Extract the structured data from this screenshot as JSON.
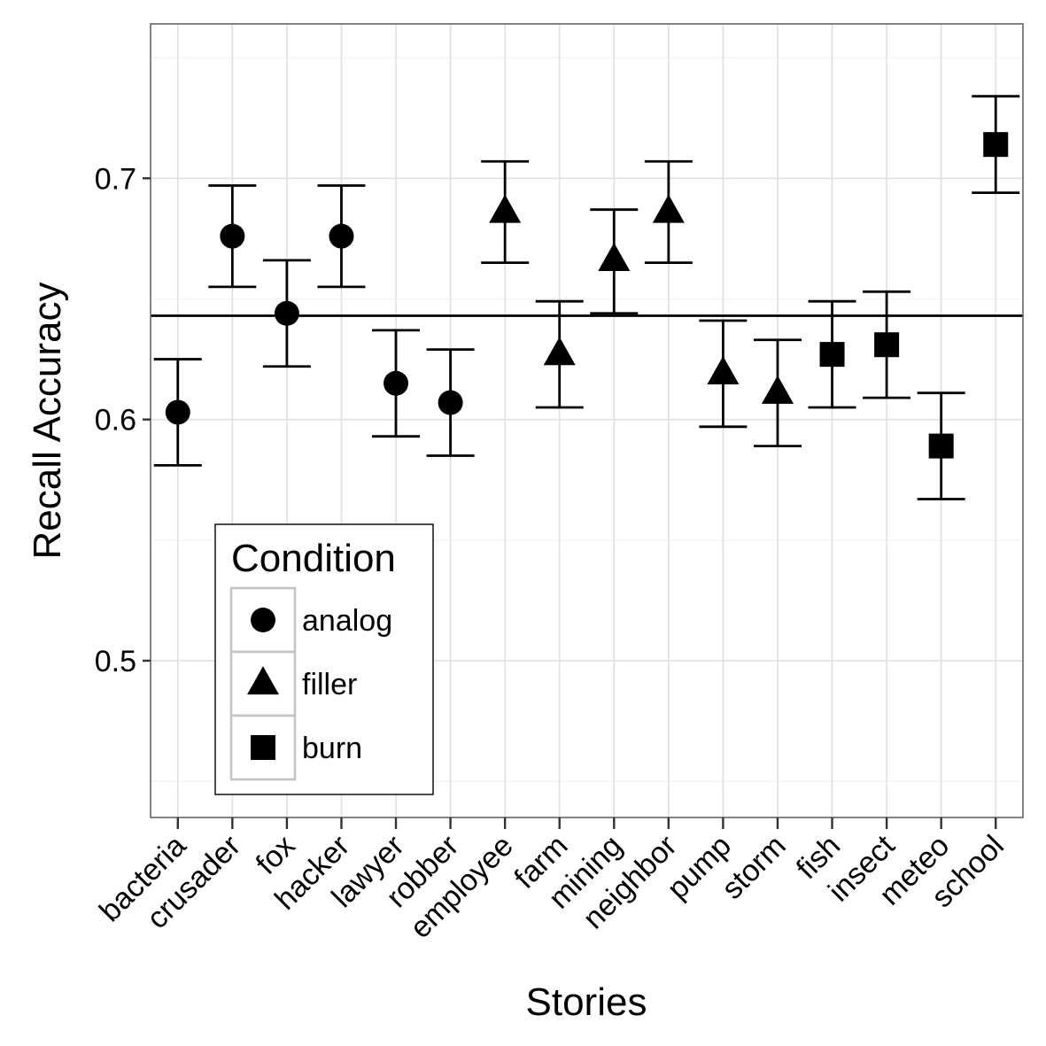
{
  "chart_data": {
    "type": "scatter",
    "xlabel": "Stories",
    "ylabel": "Recall Accuracy",
    "ylim": [
      0.435,
      0.764
    ],
    "y_ticks": [
      0.5,
      0.6,
      0.7
    ],
    "y_tick_labels": [
      "0.5",
      "0.6",
      "0.7"
    ],
    "grid": true,
    "reference_line": 0.643,
    "legend": {
      "title": "Condition",
      "placement": "bottom-left",
      "entries": [
        {
          "label": "analog",
          "shape": "circle"
        },
        {
          "label": "filler",
          "shape": "triangle"
        },
        {
          "label": "burn",
          "shape": "square"
        }
      ]
    },
    "categories": [
      "bacteria",
      "crusader",
      "fox",
      "hacker",
      "lawyer",
      "robber",
      "employee",
      "farm",
      "mining",
      "neighbor",
      "pump",
      "storm",
      "fish",
      "insect",
      "meteo",
      "school"
    ],
    "series": [
      {
        "name": "analog",
        "shape": "circle",
        "points": [
          {
            "x": "bacteria",
            "y": 0.603,
            "lo": 0.581,
            "hi": 0.625
          },
          {
            "x": "crusader",
            "y": 0.676,
            "lo": 0.655,
            "hi": 0.697
          },
          {
            "x": "fox",
            "y": 0.644,
            "lo": 0.622,
            "hi": 0.666
          },
          {
            "x": "hacker",
            "y": 0.676,
            "lo": 0.655,
            "hi": 0.697
          },
          {
            "x": "lawyer",
            "y": 0.615,
            "lo": 0.593,
            "hi": 0.637
          },
          {
            "x": "robber",
            "y": 0.607,
            "lo": 0.585,
            "hi": 0.629
          }
        ]
      },
      {
        "name": "filler",
        "shape": "triangle",
        "points": [
          {
            "x": "employee",
            "y": 0.686,
            "lo": 0.665,
            "hi": 0.707
          },
          {
            "x": "farm",
            "y": 0.627,
            "lo": 0.605,
            "hi": 0.649
          },
          {
            "x": "mining",
            "y": 0.666,
            "lo": 0.644,
            "hi": 0.687
          },
          {
            "x": "neighbor",
            "y": 0.686,
            "lo": 0.665,
            "hi": 0.707
          },
          {
            "x": "pump",
            "y": 0.619,
            "lo": 0.597,
            "hi": 0.641
          },
          {
            "x": "storm",
            "y": 0.611,
            "lo": 0.589,
            "hi": 0.633
          }
        ]
      },
      {
        "name": "burn",
        "shape": "square",
        "points": [
          {
            "x": "fish",
            "y": 0.627,
            "lo": 0.605,
            "hi": 0.649
          },
          {
            "x": "insect",
            "y": 0.631,
            "lo": 0.609,
            "hi": 0.653
          },
          {
            "x": "meteo",
            "y": 0.589,
            "lo": 0.567,
            "hi": 0.611
          },
          {
            "x": "school",
            "y": 0.714,
            "lo": 0.694,
            "hi": 0.734
          }
        ]
      }
    ]
  }
}
